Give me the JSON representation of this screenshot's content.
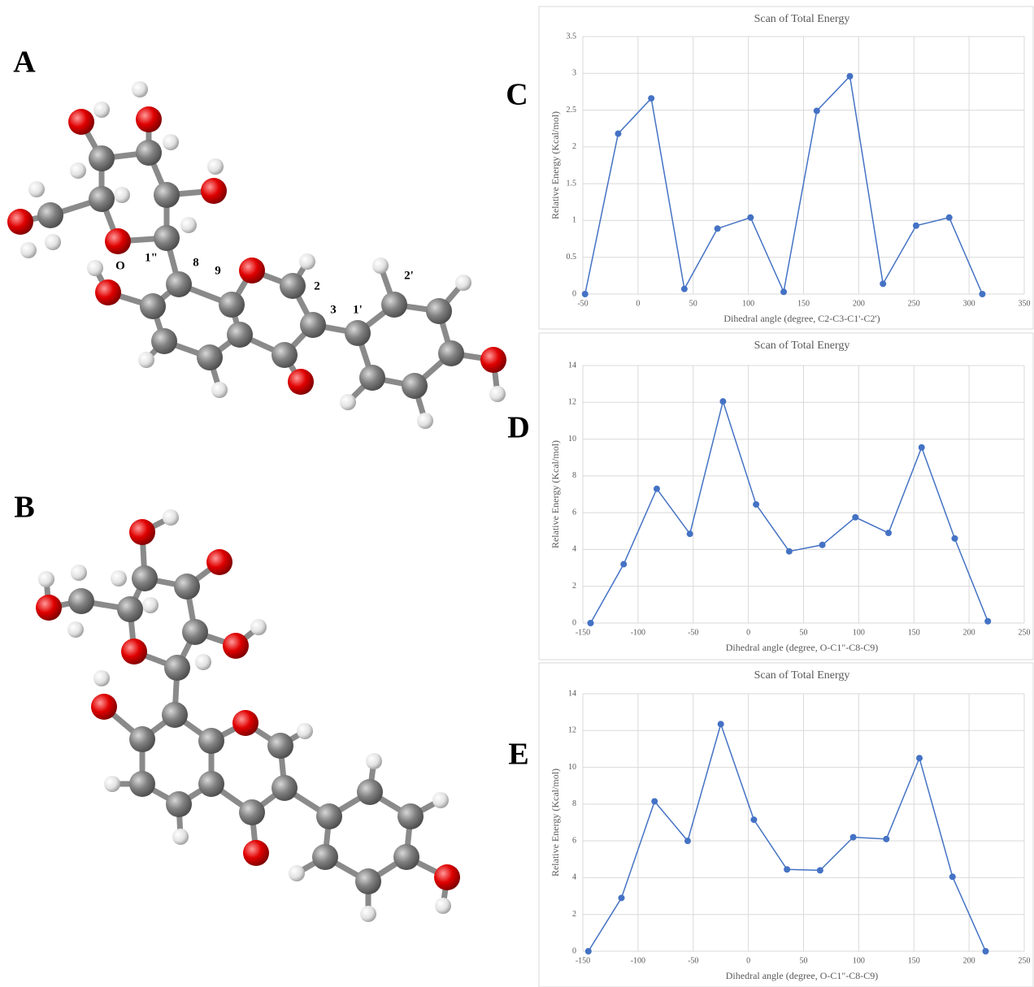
{
  "panel_labels": [
    "A",
    "B",
    "C",
    "D",
    "E"
  ],
  "atom_labels": [
    "O",
    "1\"",
    "8",
    "9",
    "2",
    "3",
    "1'",
    "2'"
  ],
  "chart_data": [
    {
      "type": "line",
      "title": "Scan of Total Energy",
      "x_label": "Dihedral angle (degree, C2-C3-C1'-C2')",
      "y_label": "Relative Energy (Kcal/mol)",
      "x": [
        -48,
        -18,
        12,
        42,
        72,
        102,
        132,
        162,
        192,
        222,
        252,
        282,
        312
      ],
      "values": [
        0,
        2.18,
        2.66,
        0.07,
        0.89,
        1.04,
        0.03,
        2.49,
        2.96,
        0.14,
        0.93,
        1.04,
        0
      ],
      "color": "#4472c4",
      "grid": true,
      "xlim": [
        -50,
        350
      ],
      "xticks": [
        -50,
        0,
        50,
        100,
        150,
        200,
        250,
        300,
        350
      ],
      "ylim": [
        0,
        3.5
      ],
      "yticks": [
        0,
        0.5,
        1,
        1.5,
        2,
        2.5,
        3,
        3.5
      ]
    },
    {
      "type": "line",
      "title": "Scan of Total Energy",
      "x_label": "Dihedral angle (degree, O-C1\"-C8-C9)",
      "y_label": "Relative Energy (Kcal/mol)",
      "x": [
        -143,
        -113,
        -83,
        -53,
        -23,
        7,
        37,
        67,
        97,
        127,
        157,
        187,
        217
      ],
      "values": [
        0,
        3.2,
        7.3,
        4.85,
        12.05,
        6.45,
        3.9,
        4.25,
        5.75,
        4.9,
        9.55,
        4.6,
        0.1
      ],
      "color": "#4472c4",
      "grid": true,
      "xlim": [
        -150,
        250
      ],
      "xticks": [
        -150,
        -100,
        -50,
        0,
        50,
        100,
        150,
        200,
        250
      ],
      "ylim": [
        0,
        14
      ],
      "yticks": [
        0,
        2,
        4,
        6,
        8,
        10,
        12,
        14
      ]
    },
    {
      "type": "line",
      "title": "Scan of Total Energy",
      "x_label": "Dihedral angle (degree, O-C1\"-C8-C9)",
      "y_label": "Relative Energy (Kcal/mol)",
      "x": [
        -145,
        -115,
        -85,
        -55,
        -25,
        5,
        35,
        65,
        95,
        125,
        155,
        185,
        215
      ],
      "values": [
        0,
        2.9,
        8.15,
        6.0,
        12.35,
        7.15,
        4.45,
        4.4,
        6.2,
        6.1,
        10.5,
        4.05,
        0
      ],
      "color": "#4472c4",
      "grid": true,
      "xlim": [
        -150,
        250
      ],
      "xticks": [
        -150,
        -100,
        -50,
        0,
        50,
        100,
        150,
        200,
        250
      ],
      "ylim": [
        0,
        14
      ],
      "yticks": [
        0,
        2,
        4,
        6,
        8,
        10,
        12,
        14
      ]
    }
  ]
}
